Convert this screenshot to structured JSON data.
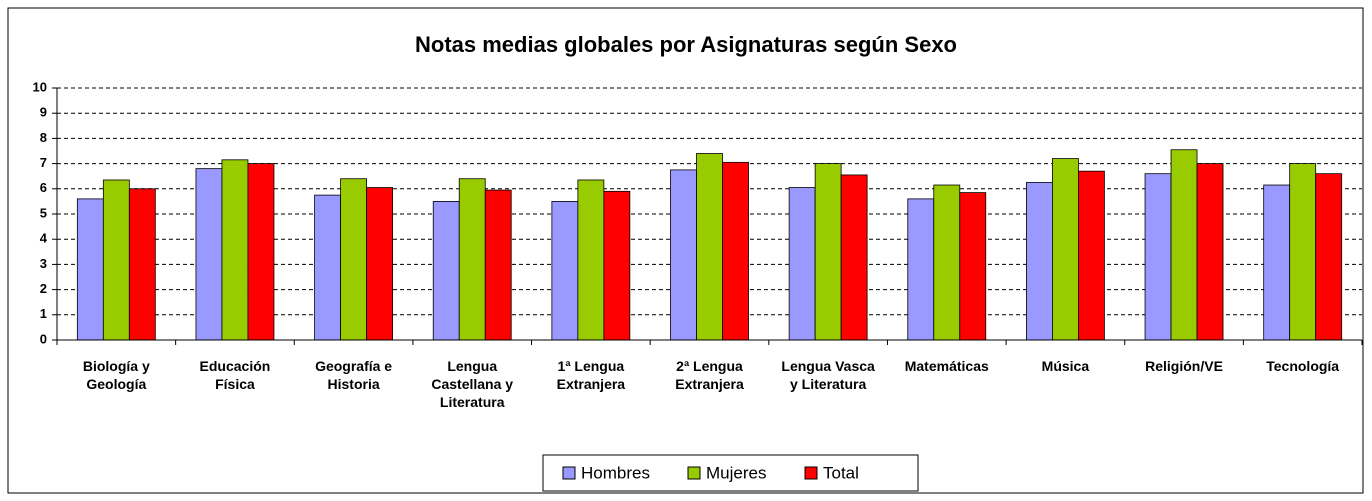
{
  "chart_data": {
    "type": "bar",
    "title": "Notas medias globales por Asignaturas según Sexo",
    "categories": [
      "Biología y Geología",
      "Educación Física",
      "Geografía e Historia",
      "Lengua Castellana y Literatura",
      "1ª Lengua Extranjera",
      "2ª Lengua Extranjera",
      "Lengua Vasca y Literatura",
      "Matemáticas",
      "Música",
      "Religión/VE",
      "Tecnología"
    ],
    "series": [
      {
        "name": "Hombres",
        "color": "#9999ff",
        "values": [
          5.6,
          6.8,
          5.75,
          5.5,
          5.5,
          6.75,
          6.05,
          5.6,
          6.25,
          6.6,
          6.15
        ]
      },
      {
        "name": "Mujeres",
        "color": "#99cc00",
        "values": [
          6.35,
          7.15,
          6.4,
          6.4,
          6.35,
          7.4,
          7.0,
          6.15,
          7.2,
          7.55,
          7.0
        ]
      },
      {
        "name": "Total",
        "color": "#ff0000",
        "values": [
          6.0,
          7.0,
          6.05,
          5.95,
          5.9,
          7.05,
          6.55,
          5.85,
          6.7,
          7.0,
          6.6
        ]
      }
    ],
    "ylim": [
      0,
      10
    ],
    "yticks": [
      0,
      1,
      2,
      3,
      4,
      5,
      6,
      7,
      8,
      9,
      10
    ],
    "grid": true,
    "legend": "bottom"
  }
}
